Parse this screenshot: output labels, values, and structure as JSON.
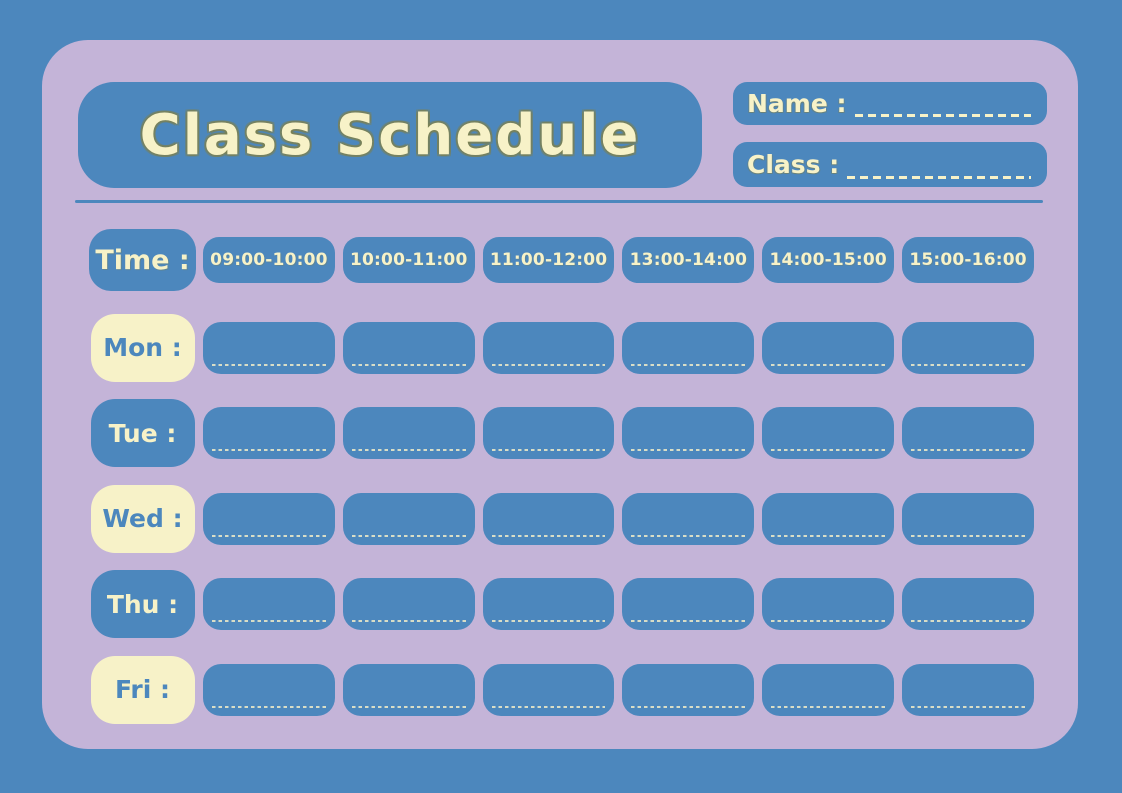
{
  "title": "Class Schedule",
  "fields": {
    "name_label": "Name :",
    "class_label": "Class :"
  },
  "schedule": {
    "time_label": "Time :",
    "time_slots": [
      "09:00-10:00",
      "10:00-11:00",
      "11:00-12:00",
      "13:00-14:00",
      "14:00-15:00",
      "15:00-16:00"
    ],
    "days": [
      {
        "label": "Mon :",
        "variant": "cream"
      },
      {
        "label": "Tue :",
        "variant": "blue"
      },
      {
        "label": "Wed :",
        "variant": "cream"
      },
      {
        "label": "Thu :",
        "variant": "blue"
      },
      {
        "label": "Fri :",
        "variant": "cream"
      }
    ]
  },
  "colors": {
    "background_blue": "#4C87BD",
    "card_lavender": "#C4B4D8",
    "accent_cream": "#F7F2C8"
  }
}
